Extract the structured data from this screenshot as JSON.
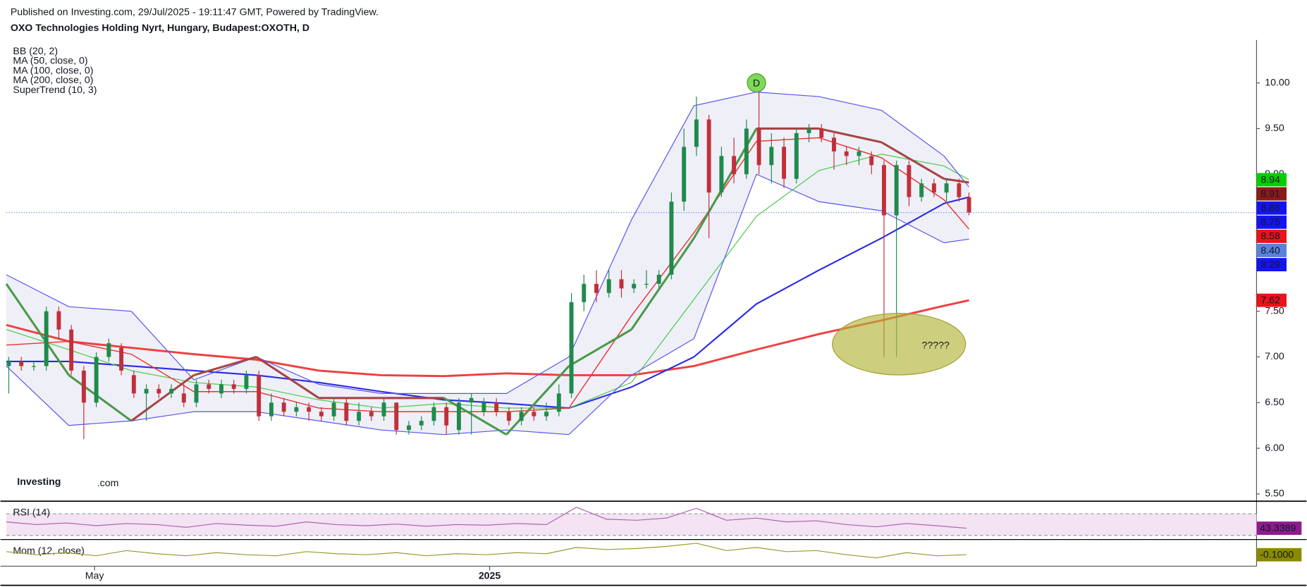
{
  "header": {
    "published": "Published on Investing.com, 29/Jul/2025 - 19:11:47 GMT, Powered by TradingView."
  },
  "logo": {
    "name": "Investing",
    "suffix": ".com"
  },
  "chart_data": [
    {
      "type": "candlestick",
      "title": "OXO Technologies Holding Nyrt, Hungary, Budapest:OXOTH, D",
      "up_color": "#1f8a4c",
      "down_color": "#c0303a",
      "x": [
        1,
        6,
        11,
        16,
        21,
        26,
        31,
        36,
        41,
        46,
        51,
        56,
        61,
        66,
        71,
        76,
        81,
        86,
        91,
        96,
        101,
        106,
        111,
        116,
        121,
        126,
        131,
        136,
        141,
        146,
        151,
        156,
        161,
        166,
        171,
        176,
        181,
        186,
        191,
        196,
        201,
        206,
        211,
        216,
        221,
        226,
        231,
        236,
        241,
        246,
        251,
        256,
        261,
        266,
        271,
        276,
        281,
        286,
        291,
        296,
        301,
        306,
        311,
        316,
        321,
        326,
        331,
        336,
        341,
        346,
        351,
        356,
        361,
        366,
        371,
        376,
        381,
        385
      ],
      "open": [
        6.9,
        6.95,
        6.9,
        6.9,
        7.5,
        7.3,
        6.85,
        6.5,
        7.0,
        7.1,
        6.8,
        6.6,
        6.65,
        6.6,
        6.6,
        6.5,
        6.7,
        6.6,
        6.7,
        6.65,
        6.8,
        6.35,
        6.5,
        6.4,
        6.45,
        6.4,
        6.35,
        6.5,
        6.3,
        6.4,
        6.35,
        6.5,
        6.2,
        6.25,
        6.3,
        6.45,
        6.2,
        6.5,
        6.4,
        6.5,
        6.4,
        6.3,
        6.4,
        6.35,
        6.4,
        6.6,
        7.6,
        7.8,
        7.7,
        7.85,
        7.75,
        7.8,
        7.8,
        7.9,
        8.7,
        9.3,
        9.6,
        8.8,
        9.2,
        9.0,
        9.5,
        9.1,
        9.3,
        8.95,
        9.45,
        9.5,
        9.4,
        9.25,
        9.2,
        9.2,
        9.1,
        8.55,
        9.1,
        8.75,
        8.9,
        8.8,
        8.9,
        8.75
      ],
      "high": [
        7.0,
        7.0,
        6.95,
        7.55,
        7.55,
        7.35,
        6.9,
        7.05,
        7.2,
        7.15,
        6.85,
        6.7,
        6.7,
        6.7,
        6.7,
        6.75,
        6.75,
        6.75,
        6.75,
        6.85,
        6.85,
        6.6,
        6.55,
        6.5,
        6.5,
        6.45,
        6.55,
        6.55,
        6.5,
        6.45,
        6.55,
        6.5,
        6.3,
        6.35,
        6.5,
        6.5,
        6.55,
        6.6,
        6.55,
        6.55,
        6.45,
        6.45,
        6.45,
        6.5,
        6.7,
        7.7,
        7.9,
        7.95,
        7.95,
        7.95,
        7.85,
        7.95,
        7.95,
        8.8,
        9.5,
        9.85,
        9.65,
        9.3,
        9.4,
        9.6,
        9.95,
        9.45,
        9.4,
        9.5,
        9.55,
        9.55,
        9.45,
        9.3,
        9.3,
        9.25,
        9.15,
        9.15,
        9.15,
        8.95,
        8.95,
        8.95,
        8.95,
        8.8
      ],
      "low": [
        6.6,
        6.85,
        6.85,
        6.85,
        7.2,
        6.8,
        6.1,
        6.45,
        6.95,
        6.8,
        6.55,
        6.3,
        6.55,
        6.55,
        6.45,
        6.45,
        6.6,
        6.55,
        6.6,
        6.6,
        6.3,
        6.3,
        6.35,
        6.35,
        6.3,
        6.3,
        6.3,
        6.25,
        6.25,
        6.3,
        6.3,
        6.15,
        6.15,
        6.2,
        6.25,
        6.15,
        6.15,
        6.15,
        6.35,
        6.35,
        6.25,
        6.25,
        6.3,
        6.3,
        6.35,
        6.55,
        7.5,
        7.6,
        7.65,
        7.65,
        7.7,
        7.75,
        7.75,
        7.85,
        8.6,
        9.2,
        8.3,
        8.75,
        8.9,
        8.95,
        9.0,
        8.9,
        8.85,
        8.9,
        9.35,
        9.35,
        9.05,
        9.1,
        9.1,
        9.0,
        7.0,
        7.0,
        8.65,
        8.7,
        8.75,
        8.7,
        8.7,
        8.55
      ],
      "close": [
        6.95,
        6.9,
        6.9,
        7.5,
        7.3,
        6.85,
        6.5,
        7.0,
        7.15,
        6.85,
        6.6,
        6.65,
        6.6,
        6.65,
        6.5,
        6.7,
        6.65,
        6.7,
        6.65,
        6.8,
        6.35,
        6.5,
        6.4,
        6.45,
        6.4,
        6.35,
        6.5,
        6.3,
        6.4,
        6.35,
        6.5,
        6.2,
        6.25,
        6.3,
        6.45,
        6.25,
        6.5,
        6.55,
        6.5,
        6.4,
        6.3,
        6.4,
        6.35,
        6.4,
        6.6,
        7.6,
        7.8,
        7.7,
        7.85,
        7.75,
        7.8,
        7.8,
        7.9,
        8.7,
        9.3,
        9.6,
        8.8,
        9.2,
        9.0,
        9.5,
        9.1,
        9.3,
        8.95,
        9.45,
        9.5,
        9.4,
        9.25,
        9.2,
        9.25,
        9.1,
        8.55,
        9.1,
        8.75,
        8.9,
        8.8,
        8.9,
        8.75,
        8.58
      ],
      "xlim": [
        0,
        500
      ],
      "xticks": [
        {
          "value": 35.3,
          "label": "May"
        },
        {
          "value": 193.3,
          "label": "2025"
        }
      ],
      "ylim": [
        5.42,
        10.47
      ],
      "yticks": [
        {
          "value": 5.5,
          "label": "5.50"
        },
        {
          "value": 6,
          "label": "6.00"
        },
        {
          "value": 6.5,
          "label": "6.50"
        },
        {
          "value": 7,
          "label": "7.00"
        },
        {
          "value": 7.5,
          "label": "7.50"
        },
        {
          "value": 8,
          "label": "8.00"
        },
        {
          "value": 8.5,
          "label": "8.50"
        },
        {
          "value": 9,
          "label": "9.00"
        },
        {
          "value": 9.5,
          "label": "9.50"
        },
        {
          "value": 10,
          "label": "10.00"
        }
      ],
      "indicator_x": [
        0,
        25,
        50,
        75,
        100,
        125,
        150,
        175,
        200,
        225,
        250,
        275,
        300,
        325,
        350,
        375,
        385
      ],
      "indicators": [
        {
          "name": "BB (20, 2)",
          "color": "#5656ee",
          "basis_color": "#e8332f",
          "fill": "#efeff8",
          "upper": [
            7.9,
            7.55,
            7.5,
            6.75,
            7.0,
            6.7,
            6.6,
            6.6,
            6.6,
            7.0,
            8.5,
            9.75,
            9.9,
            9.85,
            9.7,
            9.2,
            8.86
          ],
          "basis": [
            7.13,
            7.17,
            7.03,
            6.62,
            6.62,
            6.44,
            6.4,
            6.4,
            6.4,
            6.44,
            7.45,
            8.36,
            9.36,
            9.4,
            9.18,
            8.72,
            8.4
          ],
          "lower": [
            6.9,
            6.25,
            6.3,
            6.4,
            6.4,
            6.3,
            6.2,
            6.15,
            6.2,
            6.15,
            6.8,
            7.2,
            9.0,
            8.7,
            8.6,
            8.25,
            8.29
          ]
        },
        {
          "name": "MA (50, close, 0)",
          "color": "#44cc44",
          "values": [
            7.3,
            7.08,
            6.85,
            6.72,
            6.67,
            6.53,
            6.44,
            6.49,
            6.44,
            6.44,
            6.72,
            7.63,
            8.54,
            9.04,
            9.22,
            9.09,
            8.94
          ]
        },
        {
          "name": "MA (100, close, 0)",
          "color": "#2a2ae8",
          "values": [
            6.95,
            6.95,
            6.9,
            6.85,
            6.8,
            6.72,
            6.62,
            6.53,
            6.49,
            6.44,
            6.67,
            7.0,
            7.58,
            7.95,
            8.3,
            8.68,
            8.75
          ]
        },
        {
          "name": "MA (200, close, 0)",
          "color": "#ee4040",
          "values": [
            7.35,
            7.17,
            7.1,
            7.03,
            6.97,
            6.85,
            6.8,
            6.79,
            6.82,
            6.8,
            6.8,
            6.9,
            7.08,
            7.25,
            7.4,
            7.56,
            7.62
          ]
        },
        {
          "name": "SuperTrend (10, 3)",
          "values": [
            7.8,
            6.8,
            6.3,
            6.8,
            7.0,
            6.55,
            6.55,
            6.55,
            6.15,
            6.9,
            7.3,
            8.3,
            9.5,
            9.5,
            9.35,
            8.95,
            8.91
          ],
          "colors": [
            "#a64545",
            "#4a9a4a",
            "#4a9a4a",
            "#a64545",
            "#a64545",
            "#a64545",
            "#a64545",
            "#a64545",
            "#4a9a4a",
            "#4a9a4a",
            "#4a9a4a",
            "#4a9a4a",
            "#4a9a4a",
            "#a64545",
            "#a64545",
            "#a64545",
            "#a64545"
          ]
        }
      ],
      "price_labels": {
        "values": [
          8.94,
          8.91,
          8.86,
          8.75,
          8.58,
          {
            "value": 8.4,
            "label": "8.40"
          },
          8.29,
          7.62
        ],
        "colors": [
          "#00d000",
          "#8b1a1a",
          "#1414f0",
          "#1414f0",
          "#e8131b",
          "#5a82dc",
          "#1414f0",
          "#e8131b"
        ]
      },
      "annotations": [
        {
          "kind": "signal",
          "x": 300,
          "y": 10.0,
          "label": "D"
        },
        {
          "kind": "ellipse",
          "x": 357,
          "y": 7.14,
          "label": "?????"
        }
      ]
    },
    {
      "type": "line",
      "title": "RSI (14)",
      "color": "#b060b0",
      "band_fill": "#f3e3f3",
      "bands": [
        30,
        70
      ],
      "x": [
        0,
        12,
        24,
        36,
        48,
        60,
        72,
        84,
        96,
        108,
        120,
        132,
        144,
        156,
        168,
        180,
        192,
        204,
        216,
        228,
        240,
        252,
        264,
        276,
        288,
        300,
        312,
        324,
        336,
        348,
        360,
        372,
        384
      ],
      "values": [
        55,
        50,
        53,
        48,
        52,
        50,
        45,
        52,
        49,
        47,
        55,
        50,
        48,
        51,
        47,
        50,
        49,
        52,
        50,
        82,
        60,
        58,
        62,
        80,
        58,
        62,
        55,
        57,
        50,
        46,
        52,
        48,
        43.3389
      ],
      "ylim": [
        24,
        90
      ],
      "xlim": [
        0,
        500
      ],
      "last_label": 43.3389,
      "label_color": "#8e1b8e"
    },
    {
      "type": "line",
      "title": "Mom (12, close)",
      "color": "#9a9a30",
      "x": [
        0,
        12,
        24,
        36,
        48,
        60,
        72,
        84,
        96,
        108,
        120,
        132,
        144,
        156,
        168,
        180,
        192,
        204,
        216,
        228,
        240,
        252,
        264,
        276,
        288,
        300,
        312,
        324,
        336,
        348,
        360,
        372,
        384
      ],
      "values": [
        0.2,
        -0.1,
        0.1,
        -0.2,
        0.3,
        0.0,
        -0.2,
        0.1,
        -0.1,
        -0.2,
        0.2,
        0.0,
        -0.1,
        0.1,
        -0.2,
        0.0,
        -0.1,
        0.1,
        0.0,
        0.6,
        0.4,
        0.5,
        0.7,
        1.0,
        0.3,
        0.6,
        0.2,
        0.3,
        -0.1,
        -0.4,
        0.1,
        -0.2,
        -0.1
      ],
      "ylim": [
        -1.2,
        1.2
      ],
      "xlim": [
        0,
        500
      ],
      "last_label": {
        "value": -0.1,
        "label": "-0.1000"
      },
      "label_color": "#8a8a00"
    }
  ]
}
